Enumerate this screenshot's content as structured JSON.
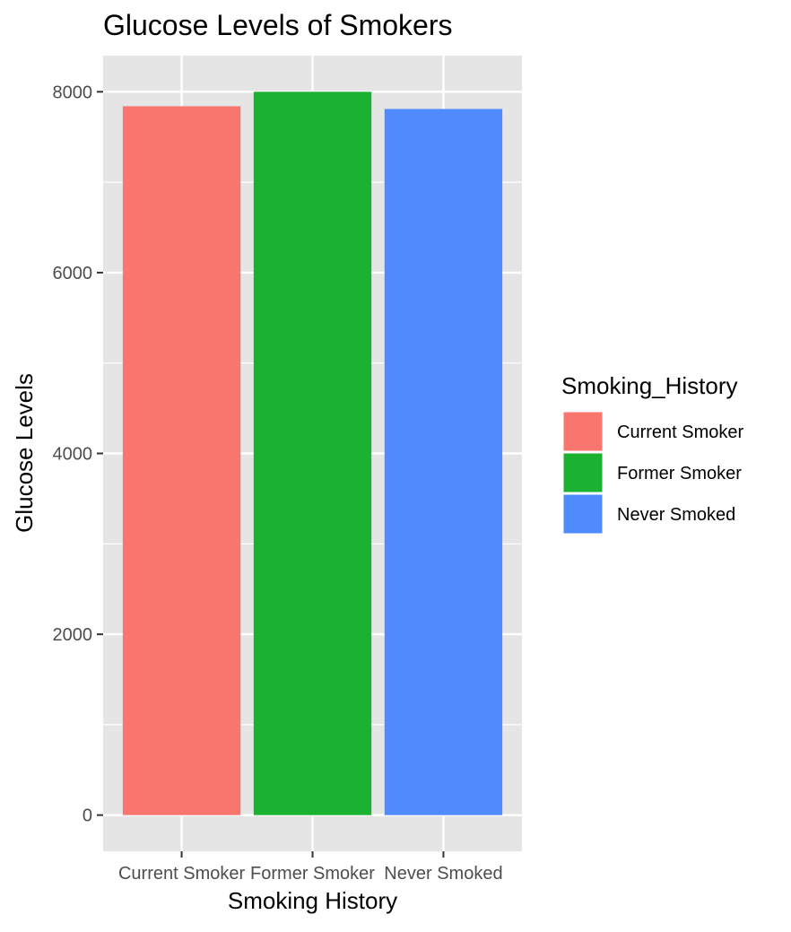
{
  "chart_data": {
    "type": "bar",
    "title": "Glucose Levels of Smokers",
    "xlabel": "Smoking History",
    "ylabel": "Glucose Levels",
    "categories": [
      "Current Smoker",
      "Former Smoker",
      "Never Smoked"
    ],
    "values": [
      7840,
      8000,
      7810
    ],
    "colors": [
      "#F8766D",
      "#1BB231",
      "#4F8BFF"
    ],
    "ylim": [
      -400,
      8400
    ],
    "yticks": [
      0,
      2000,
      4000,
      6000,
      8000
    ],
    "ytick_labels": [
      "0",
      "2000",
      "4000",
      "6000",
      "8000"
    ],
    "grid": true,
    "background": "#E5E5E5",
    "legend": {
      "title": "Smoking_History",
      "position": "right",
      "entries": [
        "Current Smoker",
        "Former Smoker",
        "Never Smoked"
      ]
    }
  }
}
